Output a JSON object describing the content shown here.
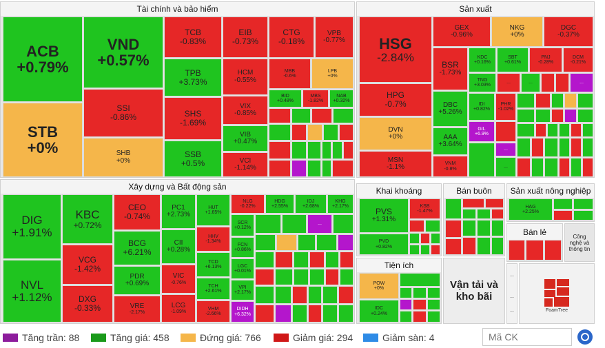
{
  "colors": {
    "ceiling": "#b416cc",
    "up": "#1fc41f",
    "unchanged": "#f5b64a",
    "down": "#e62727",
    "floor": "#2e8be6"
  },
  "sectors": {
    "finance": "Tài chính và bảo hiểm",
    "manufacturing": "Sản xuất",
    "realestate": "Xây dựng và Bất động sản",
    "mining": "Khai khoáng",
    "wholesale": "Bán buôn",
    "agri": "Sản xuất nông nghiệp",
    "retail": "Bán lẻ",
    "tech": "Công nghệ và thông tin",
    "utilities": "Tiện ích",
    "transport": "Vận tải và kho bãi"
  },
  "overflow": "...",
  "stocks": {
    "ACB": {
      "code": "ACB",
      "chg": "+0.79%"
    },
    "VND": {
      "code": "VND",
      "chg": "+0.57%"
    },
    "TCB": {
      "code": "TCB",
      "chg": "-0.83%"
    },
    "EIB": {
      "code": "EIB",
      "chg": "-0.73%"
    },
    "CTG": {
      "code": "CTG",
      "chg": "-0.18%"
    },
    "VPB": {
      "code": "VPB",
      "chg": "-0.77%"
    },
    "STB": {
      "code": "STB",
      "chg": "+0%"
    },
    "SSI": {
      "code": "SSI",
      "chg": "-0.86%"
    },
    "SHB": {
      "code": "SHB",
      "chg": "+0%"
    },
    "TPB": {
      "code": "TPB",
      "chg": "+3.73%"
    },
    "SHS": {
      "code": "SHS",
      "chg": "-1.69%"
    },
    "SSB": {
      "code": "SSB",
      "chg": "+0.5%"
    },
    "HCM": {
      "code": "HCM",
      "chg": "-0.55%"
    },
    "VIX": {
      "code": "VIX",
      "chg": "-0.85%"
    },
    "VIB": {
      "code": "VIB",
      "chg": "+0.47%"
    },
    "VCI": {
      "code": "VCI",
      "chg": "-1.14%"
    },
    "MBB": {
      "code": "MBB",
      "chg": "-0.6%"
    },
    "LPB": {
      "code": "LPB",
      "chg": "+0%"
    },
    "BID": {
      "code": "BID",
      "chg": "+0.48%"
    },
    "MBS": {
      "code": "MBS",
      "chg": "-1.82%"
    },
    "NAB": {
      "code": "NAB",
      "chg": "+0.32%"
    },
    "HSG": {
      "code": "HSG",
      "chg": "-2.84%"
    },
    "GEX": {
      "code": "GEX",
      "chg": "-0.96%"
    },
    "NKG": {
      "code": "NKG",
      "chg": "+0%"
    },
    "DGC": {
      "code": "DGC",
      "chg": "-0.37%"
    },
    "BSR": {
      "code": "BSR",
      "chg": "-1.73%"
    },
    "KDC": {
      "code": "KDC",
      "chg": "+0.16%"
    },
    "SBT": {
      "code": "SBT",
      "chg": "+0.61%"
    },
    "PNJ": {
      "code": "PNJ",
      "chg": "-0.28%"
    },
    "DCM": {
      "code": "DCM",
      "chg": "-0.21%"
    },
    "TNG": {
      "code": "TNG",
      "chg": "+3.03%"
    },
    "HPG": {
      "code": "HPG",
      "chg": "-0.7%"
    },
    "DBC": {
      "code": "DBC",
      "chg": "+5.26%"
    },
    "IDI": {
      "code": "IDI",
      "chg": "+0.82%"
    },
    "PHR": {
      "code": "PHR",
      "chg": "-1.02%"
    },
    "DVN": {
      "code": "DVN",
      "chg": "+0%"
    },
    "AAA": {
      "code": "AAA",
      "chg": "+3.64%"
    },
    "GIL": {
      "code": "GIL",
      "chg": "+6.9%"
    },
    "MSN": {
      "code": "MSN",
      "chg": "-1.1%"
    },
    "VNM": {
      "code": "VNM",
      "chg": "-0.8%"
    },
    "DIG": {
      "code": "DIG",
      "chg": "+1.91%"
    },
    "KBC": {
      "code": "KBC",
      "chg": "+0.72%"
    },
    "CEO": {
      "code": "CEO",
      "chg": "-0.74%"
    },
    "PC1": {
      "code": "PC1",
      "chg": "+2.73%"
    },
    "HUT": {
      "code": "HUT",
      "chg": "+1.65%"
    },
    "NLG": {
      "code": "NLG",
      "chg": "-0.22%"
    },
    "HDG": {
      "code": "HDG",
      "chg": "+2.55%"
    },
    "IDJ": {
      "code": "IDJ",
      "chg": "+2.68%"
    },
    "KHG": {
      "code": "KHG",
      "chg": "+2.17%"
    },
    "SCR": {
      "code": "SCR",
      "chg": "+0.12%"
    },
    "HHV": {
      "code": "HHV",
      "chg": "-1.34%"
    },
    "FCN": {
      "code": "FCN",
      "chg": "+0.86%"
    },
    "CII": {
      "code": "CII",
      "chg": "+0.28%"
    },
    "BCG": {
      "code": "BCG",
      "chg": "+6.21%"
    },
    "NVL": {
      "code": "NVL",
      "chg": "+1.12%"
    },
    "VCG": {
      "code": "VCG",
      "chg": "-1.42%"
    },
    "TCD": {
      "code": "TCD",
      "chg": "+6.13%"
    },
    "LGC": {
      "code": "LGC",
      "chg": "+0.01%"
    },
    "PDR": {
      "code": "PDR",
      "chg": "+0.69%"
    },
    "VIC": {
      "code": "VIC",
      "chg": "-0.76%"
    },
    "TCH": {
      "code": "TCH",
      "chg": "+2.61%"
    },
    "VPI": {
      "code": "VPI",
      "chg": "+2.17%"
    },
    "DXG": {
      "code": "DXG",
      "chg": "-0.33%"
    },
    "VRE": {
      "code": "VRE",
      "chg": "-2.17%"
    },
    "LCG": {
      "code": "LCG",
      "chg": "-1.09%"
    },
    "VHM": {
      "code": "VHM",
      "chg": "-2.66%"
    },
    "DIDH": {
      "code": "DIDH",
      "chg": "+6.32%"
    },
    "PVS": {
      "code": "PVS",
      "chg": "+1.31%"
    },
    "KSB": {
      "code": "KSB",
      "chg": "-1.47%"
    },
    "PVD": {
      "code": "PVD",
      "chg": "+0.82%"
    },
    "HAG": {
      "code": "HAG",
      "chg": "+2.25%"
    },
    "POW": {
      "code": "POW",
      "chg": "+0%"
    },
    "IDC": {
      "code": "IDC",
      "chg": "+0.24%"
    }
  },
  "legend": [
    {
      "label": "Tăng trần: 88"
    },
    {
      "label": "Tăng giá: 458"
    },
    {
      "label": "Đứng giá: 766"
    },
    {
      "label": "Giảm giá: 294"
    },
    {
      "label": "Giảm sàn: 4"
    }
  ],
  "search": {
    "placeholder": "Mã CK"
  },
  "logo": {
    "text": "FoamTree"
  }
}
